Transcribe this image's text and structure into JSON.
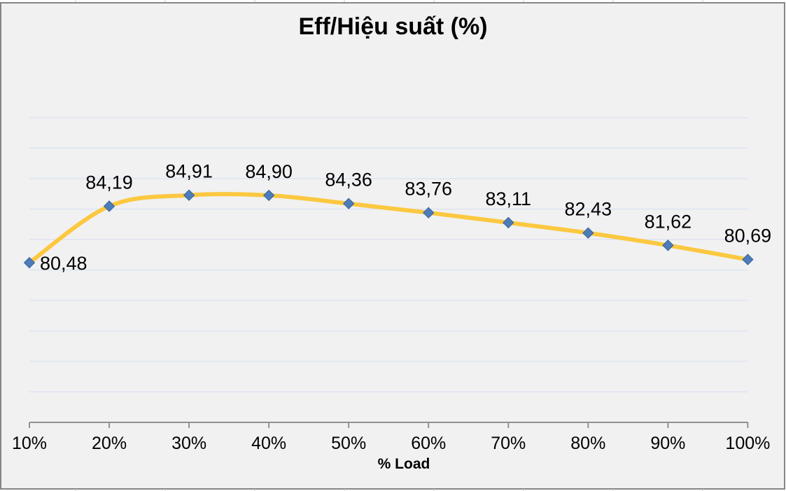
{
  "chart_data": {
    "type": "line",
    "title": "Eff/Hiệu suất (%)",
    "xlabel": "% Load",
    "ylabel": "",
    "categories": [
      "10%",
      "20%",
      "30%",
      "40%",
      "50%",
      "60%",
      "70%",
      "80%",
      "90%",
      "100%"
    ],
    "series": [
      {
        "name": "Eff/Hiệu suất (%)",
        "values": [
          80.48,
          84.19,
          84.91,
          84.9,
          84.36,
          83.76,
          83.11,
          82.43,
          81.62,
          80.69
        ]
      }
    ],
    "data_labels": [
      "80,48",
      "84,19",
      "84,91",
      "84,90",
      "84,36",
      "83,76",
      "83,11",
      "82,43",
      "81,62",
      "80,69"
    ],
    "ylim": [
      70,
      90
    ],
    "y_major_unit": 2,
    "grid": "horizontal-major-only",
    "legend": "none",
    "smooth_line": true,
    "marker_shape": "diamond",
    "colors": {
      "line": "#FBC840",
      "marker_fill": "#4C7CBA",
      "marker_border": "#3A659C",
      "gridline": "#D9E1F2",
      "axis": "#909090",
      "text": "#000000",
      "plot_background": "#F1F1F2",
      "frame_border": "#868686",
      "sheet_gridline_stub": "#C9C9C9"
    }
  }
}
